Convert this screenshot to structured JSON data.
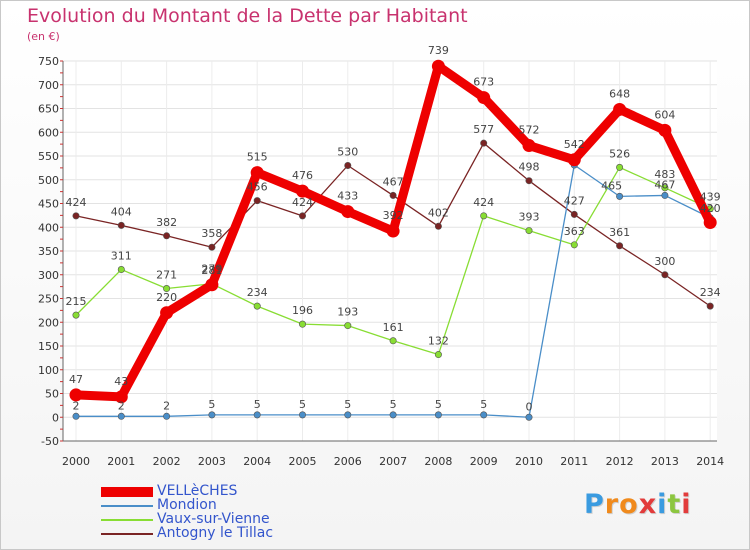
{
  "chart_data": {
    "type": "line",
    "title": "Evolution du Montant de la Dette par Habitant",
    "subtitle": "(en €)",
    "x": [
      "2000",
      "2001",
      "2002",
      "2003",
      "2004",
      "2005",
      "2006",
      "2007",
      "2008",
      "2009",
      "2010",
      "2011",
      "2012",
      "2013",
      "2014"
    ],
    "ylim": [
      -50,
      750
    ],
    "yticks": [
      -50,
      0,
      50,
      100,
      150,
      200,
      250,
      300,
      350,
      400,
      450,
      500,
      550,
      600,
      650,
      700,
      750
    ],
    "grid": true,
    "legend_position": "bottom-left",
    "series": [
      {
        "name": "VELLèCHES",
        "color": "#ee0000",
        "values": [
          47,
          43,
          220,
          279,
          515,
          476,
          433,
          392,
          739,
          673,
          572,
          542,
          648,
          604,
          410
        ],
        "labels": [
          "47",
          "43",
          "220",
          "279",
          "515",
          "476",
          "433",
          "392",
          "739",
          "673",
          "572",
          "542",
          "648",
          "604",
          ""
        ]
      },
      {
        "name": "Mondion",
        "color": "#4a8ec8",
        "values": [
          2,
          2,
          2,
          5,
          5,
          5,
          5,
          5,
          5,
          5,
          0,
          531,
          465,
          467,
          420
        ],
        "labels": [
          "2",
          "2",
          "2",
          "5",
          "5",
          "5",
          "5",
          "5",
          "5",
          "5",
          "0",
          "",
          "465",
          "467",
          "420"
        ]
      },
      {
        "name": "Vaux-sur-Vienne",
        "color": "#88dd33",
        "values": [
          215,
          311,
          271,
          281,
          234,
          196,
          193,
          161,
          132,
          424,
          393,
          363,
          526,
          483,
          439
        ],
        "labels": [
          "215",
          "311",
          "271",
          "281",
          "234",
          "196",
          "193",
          "161",
          "132",
          "424",
          "393",
          "363",
          "526",
          "483",
          "439"
        ]
      },
      {
        "name": "Antogny le Tillac",
        "color": "#7a2424",
        "values": [
          424,
          404,
          382,
          358,
          456,
          424,
          530,
          467,
          402,
          577,
          498,
          427,
          361,
          300,
          234
        ],
        "labels": [
          "424",
          "404",
          "382",
          "358",
          "456",
          "424",
          "530",
          "467",
          "402",
          "577",
          "498",
          "427",
          "361",
          "300",
          "234"
        ]
      }
    ]
  },
  "logo": {
    "text": "Proxiti",
    "colors": [
      "#3a9be0",
      "#f08a1c",
      "#f08a1c",
      "#e23b3b",
      "#3a9be0",
      "#8cc63f",
      "#e23b3b"
    ]
  }
}
